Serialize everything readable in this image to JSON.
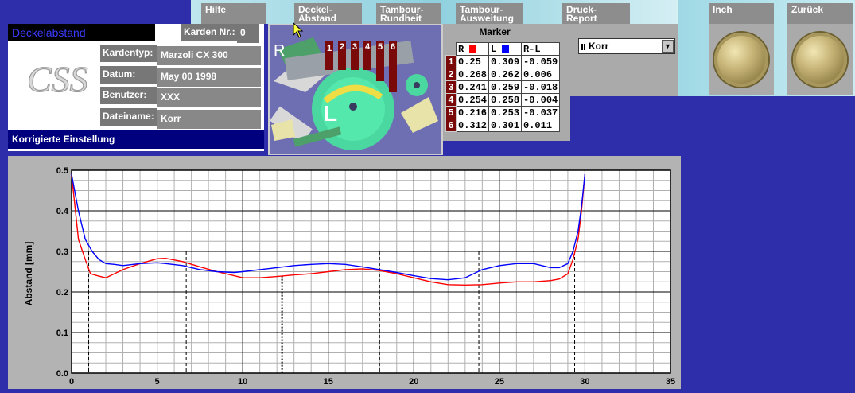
{
  "toolbar": {
    "hilfe": "Hilfe",
    "deckel": "Deckel-\nAbstand",
    "rundheit": "Tambour-\nRundheit",
    "ausweitung": "Tambour-\nAusweitung",
    "druck": "Druck-\nReport",
    "inch": "Inch",
    "zurueck": "Zurück"
  },
  "info": {
    "title": "Deckelabstand",
    "karden_label": "Karden Nr.:",
    "karden_value": "0",
    "kardentyp_label": "Kardentyp:",
    "kardentyp_value": "Marzoli CX 300",
    "datum_label": "Datum:",
    "datum_value": "May 00 1998",
    "benutzer_label": "Benutzer:",
    "benutzer_value": "XXX",
    "dateiname_label": "Dateiname:",
    "dateiname_value": "Korr",
    "logo_text": "CSS",
    "status": "Korrigierte Einstellung"
  },
  "picture": {
    "side_r": "R",
    "side_l": "L",
    "positions": [
      "1",
      "2",
      "3",
      "4",
      "5",
      "6"
    ]
  },
  "marker": {
    "title": "Marker",
    "headers": [
      "R",
      "L",
      "R-L"
    ],
    "rows": [
      [
        "1",
        "0.25",
        "0.309",
        "-0.059"
      ],
      [
        "2",
        "0.268",
        "0.262",
        "0.006"
      ],
      [
        "3",
        "0.241",
        "0.259",
        "-0.018"
      ],
      [
        "4",
        "0.254",
        "0.258",
        "-0.004"
      ],
      [
        "5",
        "0.216",
        "0.253",
        "-0.037"
      ],
      [
        "6",
        "0.312",
        "0.301",
        "0.011"
      ]
    ]
  },
  "dropdown": {
    "value": "Korr",
    "icon": "chevron-down-icon"
  },
  "colors": {
    "series_r": "#ff0000",
    "series_l": "#0000ff",
    "marker_num_bg": "#7a0a0a"
  },
  "chart_data": {
    "type": "line",
    "ylabel": "Abstand [mm]",
    "xlabel": "",
    "xlim": [
      0,
      35
    ],
    "ylim": [
      0,
      0.5
    ],
    "xticks": [
      "0",
      "5",
      "10",
      "15",
      "20",
      "25",
      "30",
      "35"
    ],
    "yticks": [
      "0.0",
      "0.1",
      "0.2",
      "0.3",
      "0.4",
      "0.5"
    ],
    "grid": true,
    "marker_lines": [
      1,
      6.7,
      12.3,
      18,
      23.8,
      29.4
    ],
    "series": [
      {
        "name": "R",
        "color": "#ff0000",
        "x": [
          0,
          0.4,
          0.8,
          1.1,
          1.5,
          2,
          2.5,
          3,
          4,
          5,
          5.5,
          6.5,
          7.5,
          8.5,
          9.5,
          10,
          11,
          12,
          13,
          14,
          15,
          16,
          17,
          18,
          19,
          20,
          21,
          22,
          23,
          24,
          25,
          26,
          27,
          28,
          28.5,
          29,
          29.3,
          29.6,
          29.8,
          30
        ],
        "y": [
          0.49,
          0.33,
          0.28,
          0.245,
          0.24,
          0.235,
          0.245,
          0.255,
          0.27,
          0.282,
          0.283,
          0.275,
          0.262,
          0.25,
          0.24,
          0.235,
          0.235,
          0.238,
          0.242,
          0.245,
          0.25,
          0.255,
          0.257,
          0.253,
          0.245,
          0.235,
          0.225,
          0.218,
          0.217,
          0.218,
          0.222,
          0.225,
          0.225,
          0.228,
          0.232,
          0.245,
          0.28,
          0.33,
          0.4,
          0.49
        ]
      },
      {
        "name": "L",
        "color": "#0000ff",
        "x": [
          0,
          0.4,
          0.8,
          1.2,
          1.6,
          2,
          2.5,
          3,
          4,
          5,
          5.5,
          6.5,
          7.5,
          8.5,
          9.5,
          10,
          11,
          12,
          13,
          14,
          15,
          16,
          17,
          18,
          19,
          20,
          21,
          22,
          23,
          24,
          25,
          26,
          27,
          28,
          28.5,
          29,
          29.3,
          29.6,
          29.8,
          30
        ],
        "y": [
          0.49,
          0.4,
          0.33,
          0.3,
          0.28,
          0.27,
          0.268,
          0.265,
          0.27,
          0.272,
          0.27,
          0.265,
          0.255,
          0.25,
          0.248,
          0.25,
          0.255,
          0.26,
          0.265,
          0.268,
          0.27,
          0.268,
          0.262,
          0.255,
          0.248,
          0.24,
          0.233,
          0.23,
          0.235,
          0.255,
          0.265,
          0.27,
          0.27,
          0.26,
          0.26,
          0.27,
          0.3,
          0.35,
          0.41,
          0.49
        ]
      }
    ]
  }
}
